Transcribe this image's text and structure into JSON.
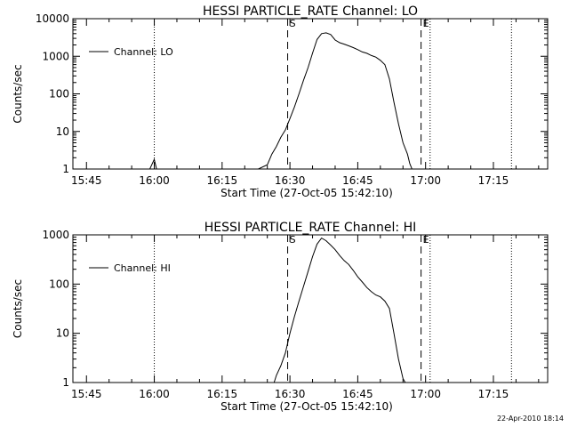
{
  "timestamp": "22-Apr-2010 18:14",
  "chart_data": [
    {
      "type": "line",
      "title": "HESSI PARTICLE_RATE Channel: LO",
      "xlabel": "Start Time (27-Oct-05 15:42:10)",
      "ylabel": "Counts/sec",
      "yscale": "log",
      "ylim": [
        1,
        10000
      ],
      "xlim": [
        "15:42",
        "17:27"
      ],
      "x_ticks": [
        "15:45",
        "16:00",
        "16:15",
        "16:30",
        "16:45",
        "17:00",
        "17:15"
      ],
      "y_ticks": [
        "1",
        "10",
        "100",
        "1000",
        "10000"
      ],
      "legend": "top-left",
      "series": [
        {
          "name": "Channel: LO",
          "x": [
            "15:42",
            "15:59",
            "16:00",
            "16:00.5",
            "16:01",
            "16:23",
            "16:25",
            "16:26",
            "16:27",
            "16:28",
            "16:29",
            "16:30",
            "16:31",
            "16:32",
            "16:33",
            "16:34",
            "16:35",
            "16:36",
            "16:37",
            "16:38",
            "16:39",
            "16:40",
            "16:41",
            "16:42",
            "16:43",
            "16:44",
            "16:45",
            "16:46",
            "16:47",
            "16:48",
            "16:49",
            "16:50",
            "16:51",
            "16:52",
            "16:53",
            "16:54",
            "16:55",
            "16:56",
            "16:56.5",
            "16:57",
            "16:57.5",
            "17:27"
          ],
          "y": [
            1,
            1,
            1.8,
            1,
            1,
            1,
            1.3,
            2.5,
            4,
            7,
            11,
            22,
            45,
            100,
            230,
            500,
            1200,
            2800,
            4000,
            4200,
            3800,
            2700,
            2300,
            2100,
            1900,
            1700,
            1500,
            1300,
            1200,
            1050,
            950,
            780,
            600,
            250,
            60,
            16,
            5,
            2.5,
            1.4,
            1,
            1,
            1
          ]
        }
      ],
      "markers": [
        {
          "label": "S",
          "time": "16:29.5",
          "style": "dashed"
        },
        {
          "label": "E",
          "time": "16:59",
          "style": "dashed"
        },
        {
          "label": "",
          "time": "16:00",
          "style": "dotted"
        },
        {
          "label": "",
          "time": "17:01",
          "style": "dotted"
        },
        {
          "label": "",
          "time": "17:19",
          "style": "dotted"
        }
      ]
    },
    {
      "type": "line",
      "title": "HESSI PARTICLE_RATE Channel: HI",
      "xlabel": "Start Time (27-Oct-05 15:42:10)",
      "ylabel": "Counts/sec",
      "yscale": "log",
      "ylim": [
        1,
        1000
      ],
      "xlim": [
        "15:42",
        "17:27"
      ],
      "x_ticks": [
        "15:45",
        "16:00",
        "16:15",
        "16:30",
        "16:45",
        "17:00",
        "17:15"
      ],
      "y_ticks": [
        "1",
        "10",
        "100",
        "1000"
      ],
      "legend": "top-left",
      "series": [
        {
          "name": "Channel: HI",
          "x": [
            "16:26.5",
            "16:27",
            "16:28",
            "16:29",
            "16:30",
            "16:31",
            "16:32",
            "16:33",
            "16:34",
            "16:35",
            "16:36",
            "16:37",
            "16:38",
            "16:39",
            "16:40",
            "16:41",
            "16:42",
            "16:43",
            "16:44",
            "16:45",
            "16:46",
            "16:47",
            "16:48",
            "16:49",
            "16:50",
            "16:51",
            "16:52",
            "16:53",
            "16:54",
            "16:55",
            "16:55.5"
          ],
          "y": [
            1,
            1.4,
            2.2,
            4,
            10,
            22,
            45,
            90,
            180,
            360,
            650,
            860,
            760,
            620,
            500,
            380,
            300,
            250,
            190,
            140,
            110,
            85,
            70,
            60,
            55,
            45,
            32,
            10,
            3,
            1.2,
            1
          ]
        }
      ],
      "markers": [
        {
          "label": "S",
          "time": "16:29.5",
          "style": "dashed"
        },
        {
          "label": "E",
          "time": "16:59",
          "style": "dashed"
        },
        {
          "label": "",
          "time": "16:00",
          "style": "dotted"
        },
        {
          "label": "",
          "time": "17:01",
          "style": "dotted"
        },
        {
          "label": "",
          "time": "17:19",
          "style": "dotted"
        }
      ]
    }
  ]
}
